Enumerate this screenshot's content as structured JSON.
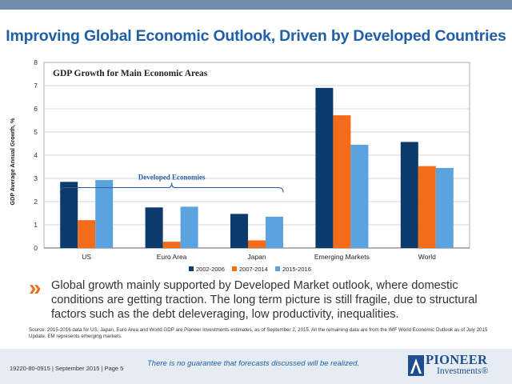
{
  "page": {
    "title": "Improving Global Economic Outlook, Driven by Developed Countries",
    "body": "Global growth mainly supported by Developed Market outlook, where domestic conditions are getting traction. The long term picture is still fragile, due to structural factors such as the debt deleveraging, low productivity, inequalities.",
    "source": "Source: 2015-2016 data for US, Japan, Euro Area and World GDP are Pioneer Investments estimates, as of September 2, 2015. All the remaining data are from the IMF World Economic Outlook as of July 2015 Update. EM represents emerging markets.",
    "footer_code": "19220-80-0915 | September 2015 | Page 5",
    "footer_disclaimer": "There is no guarantee that forecasts discussed will be realized.",
    "logo_line1": "PIONEER",
    "logo_line2": "Investments®",
    "chevron": "»"
  },
  "chart_data": {
    "type": "bar",
    "title": "GDP Growth for Main Economic Areas",
    "ylabel": "GDP Average Annual Growth, %",
    "xlabel": "",
    "ylim": [
      0,
      8
    ],
    "yticks": [
      0,
      1,
      2,
      3,
      4,
      5,
      6,
      7,
      8
    ],
    "grid": true,
    "legend": "bottom",
    "categories": [
      "US",
      "Euro Area",
      "Japan",
      "Emerging Markets",
      "World"
    ],
    "series": [
      {
        "name": "2002-2006",
        "color": "#0b3a6b",
        "values": [
          2.85,
          1.75,
          1.47,
          6.9,
          4.57
        ]
      },
      {
        "name": "2007-2014",
        "color": "#f26c1c",
        "values": [
          1.2,
          0.27,
          0.33,
          5.72,
          3.53
        ]
      },
      {
        "name": "2015-2016",
        "color": "#5ba3e0",
        "values": [
          2.93,
          1.78,
          1.35,
          4.45,
          3.45
        ]
      }
    ],
    "annotation": {
      "text": "Developed Economies",
      "span": [
        "US",
        "Japan"
      ],
      "level": 3.5
    }
  },
  "colors": {
    "title": "#1f5fa6",
    "accent": "#f26c1c",
    "top_band": "#6f8da8",
    "footer_band": "#e6ecf3"
  }
}
